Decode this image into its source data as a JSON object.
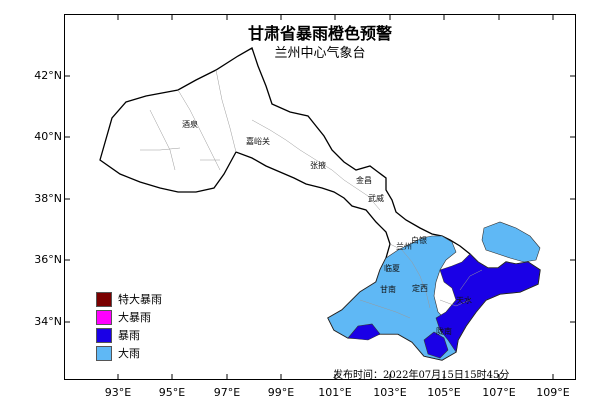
{
  "map": {
    "title": "甘肃省暴雨橙色预警",
    "subtitle": "兰州中心气象台",
    "issue_time": "发布时间：2022年07月15日15时45分",
    "lat_labels": [
      "42°N",
      "40°N",
      "38°N",
      "36°N",
      "34°N"
    ],
    "lon_labels": [
      "93°E",
      "95°E",
      "97°E",
      "99°E",
      "101°E",
      "103°E",
      "105°E",
      "107°E",
      "109°E"
    ],
    "cities": [
      "酒泉",
      "嘉峪关",
      "张掖",
      "金昌",
      "武威",
      "白银",
      "兰州",
      "临夏",
      "甘南",
      "定西",
      "天水",
      "陇南"
    ],
    "legend": [
      {
        "label": "特大暴雨",
        "color": "#7a0000"
      },
      {
        "label": "大暴雨",
        "color": "#ff00ff"
      },
      {
        "label": "暴雨",
        "color": "#1a00e6"
      },
      {
        "label": "大雨",
        "color": "#5fb8f5"
      }
    ],
    "colors": {
      "heavy_rain": "#5fb8f5",
      "rainstorm": "#1a00e6",
      "province_fill": "#ffffff",
      "outline": "#000000"
    }
  }
}
